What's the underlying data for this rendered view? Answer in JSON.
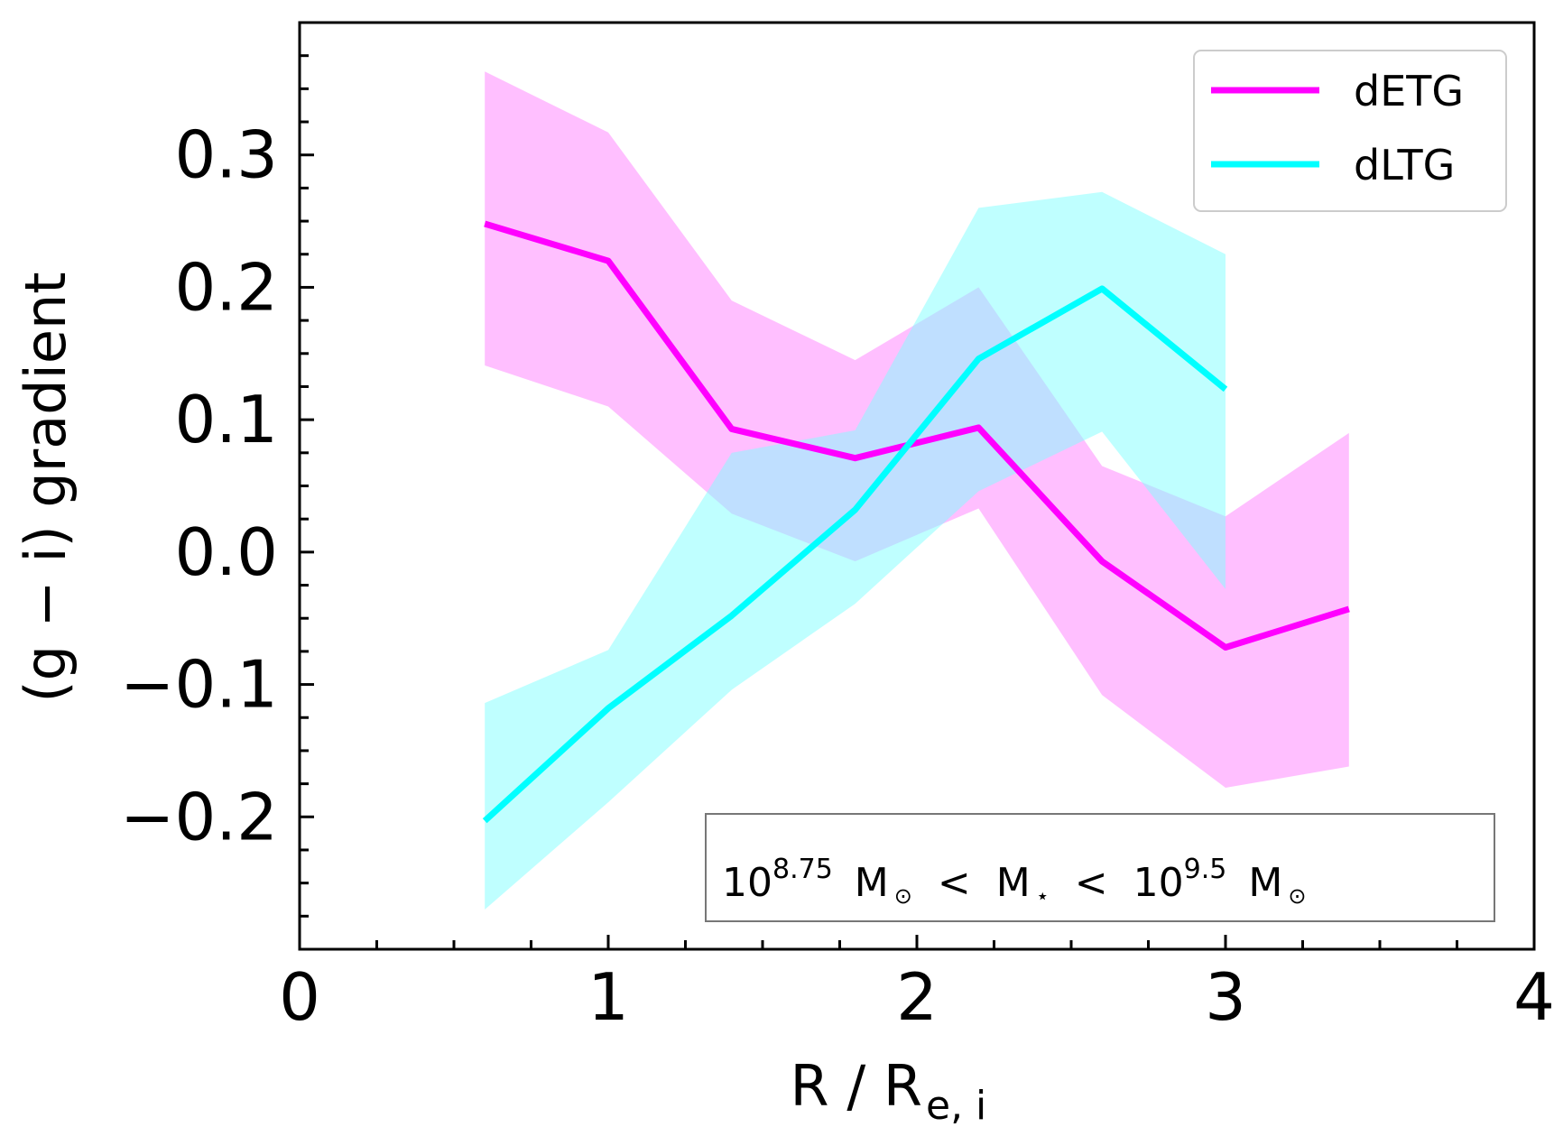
{
  "chart_data": {
    "type": "line",
    "xlabel": "R / R",
    "xlabel_subscript": "e, i",
    "ylabel": "(g − i)  gradient",
    "xlim": [
      0,
      4
    ],
    "ylim": [
      -0.3,
      0.4
    ],
    "x_ticks": [
      0,
      1,
      2,
      3,
      4
    ],
    "x_tick_labels": [
      "0",
      "1",
      "2",
      "3",
      "4"
    ],
    "x_minor_step": 0.25,
    "y_ticks": [
      -0.2,
      -0.1,
      0.0,
      0.1,
      0.2,
      0.3
    ],
    "y_tick_labels": [
      "−0.2",
      "−0.1",
      "0.0",
      "0.1",
      "0.2",
      "0.3"
    ],
    "y_minor_step": 0.025,
    "grid": false,
    "legend_position": "top-right",
    "series": [
      {
        "name": "dETG",
        "color": "#ff00ff",
        "fill_color": "#ff80ff",
        "x": [
          0.6,
          1.0,
          1.4,
          1.8,
          2.2,
          2.6,
          3.0,
          3.4
        ],
        "values": [
          0.248,
          0.22,
          0.093,
          0.071,
          0.094,
          -0.007,
          -0.072,
          -0.043
        ],
        "upper": [
          0.363,
          0.317,
          0.19,
          0.145,
          0.2,
          0.065,
          0.027,
          0.09
        ],
        "lower": [
          0.141,
          0.11,
          0.029,
          -0.007,
          0.033,
          -0.108,
          -0.178,
          -0.162
        ]
      },
      {
        "name": "dLTG",
        "color": "#00ffff",
        "fill_color": "#80ffff",
        "x": [
          0.6,
          1.0,
          1.4,
          1.8,
          2.2,
          2.6,
          3.0
        ],
        "values": [
          -0.203,
          -0.118,
          -0.048,
          0.032,
          0.146,
          0.199,
          0.123
        ],
        "upper": [
          -0.114,
          -0.074,
          0.075,
          0.092,
          0.26,
          0.272,
          0.225
        ],
        "lower": [
          -0.27,
          -0.189,
          -0.104,
          -0.039,
          0.046,
          0.091,
          -0.028
        ]
      }
    ],
    "annotation": {
      "base1": "10",
      "exp1": "8.75",
      "unit1": "M",
      "unit1_sub": "⊙",
      "lt": "<",
      "mstar": "M",
      "mstar_sub": "⋆",
      "base2": "10",
      "exp2": "9.5",
      "unit2": "M",
      "unit2_sub": "⊙"
    }
  }
}
